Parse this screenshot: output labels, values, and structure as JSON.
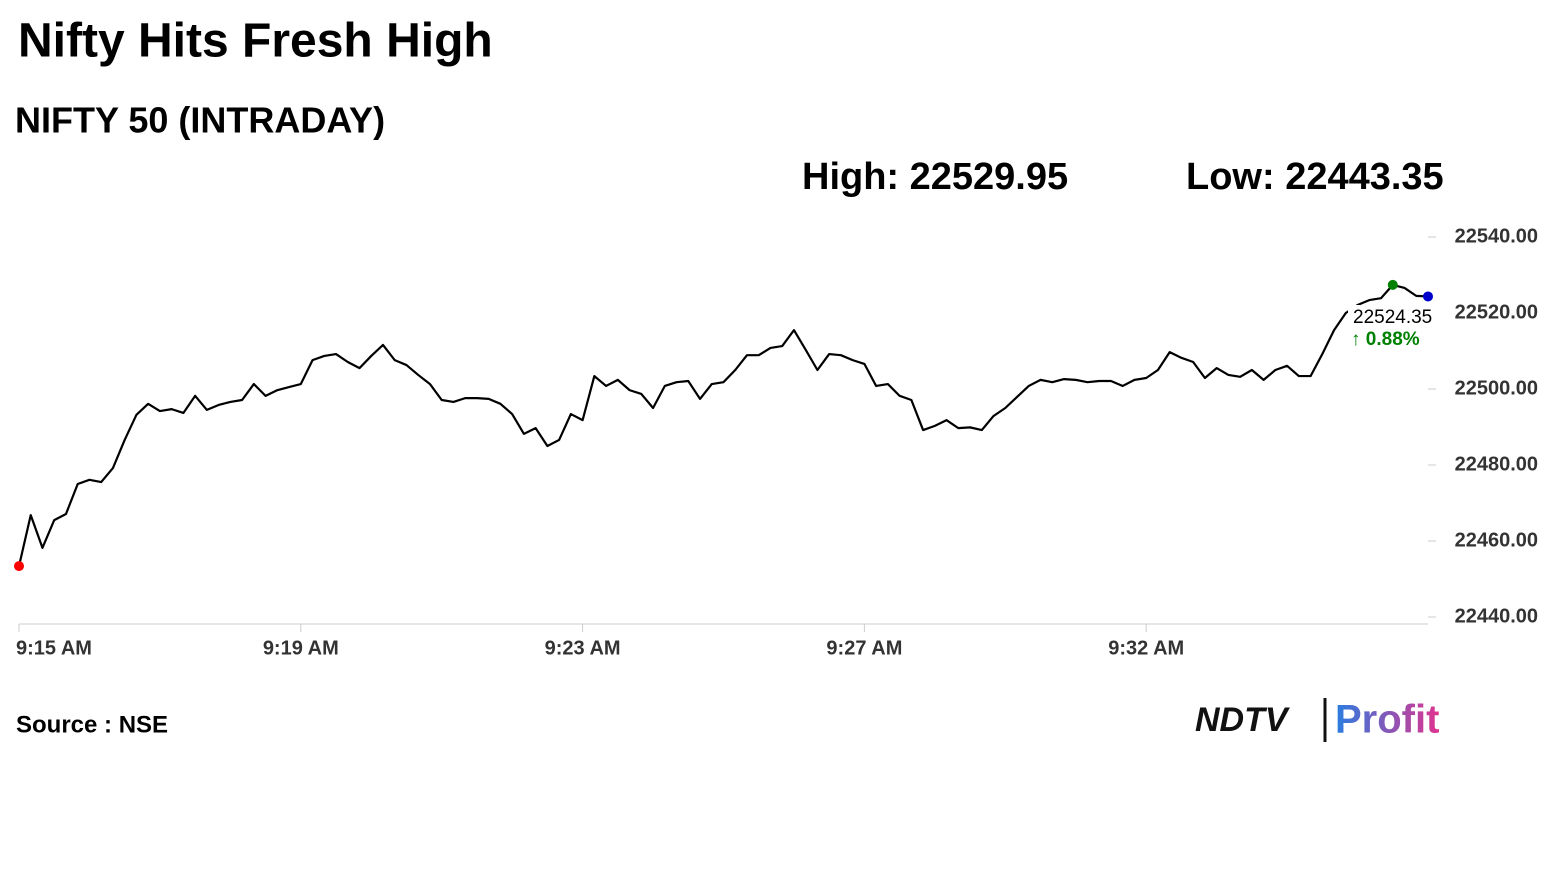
{
  "chart_data": {
    "type": "line",
    "title": "Nifty Hits Fresh High",
    "subtitle": "NIFTY 50 (INTRADAY)",
    "annotations": {
      "high": "High: 22529.95",
      "low": "Low: 22443.35",
      "last": "22524.35",
      "change": "↑ 0.88%"
    },
    "source": "Source : NSE",
    "logo": {
      "left": "NDTV",
      "right": "Profit"
    },
    "categories": [
      "9:15 AM",
      null,
      null,
      null,
      null,
      null,
      null,
      null,
      null,
      null,
      null,
      null,
      null,
      null,
      null,
      null,
      null,
      null,
      null,
      null,
      null,
      null,
      null,
      null,
      "9:19 AM",
      null,
      null,
      null,
      null,
      null,
      null,
      null,
      null,
      null,
      null,
      null,
      null,
      null,
      null,
      null,
      null,
      null,
      null,
      null,
      null,
      null,
      null,
      null,
      "9:23 AM",
      null,
      null,
      null,
      null,
      null,
      null,
      null,
      null,
      null,
      null,
      null,
      null,
      null,
      null,
      null,
      null,
      null,
      null,
      null,
      null,
      null,
      null,
      null,
      "9:27 AM",
      null,
      null,
      null,
      null,
      null,
      null,
      null,
      null,
      null,
      null,
      null,
      null,
      null,
      null,
      null,
      null,
      null,
      null,
      null,
      null,
      null,
      null,
      null,
      "9:32 AM",
      null,
      null,
      null,
      null,
      null,
      null,
      null,
      null,
      null,
      null,
      null,
      null,
      null,
      null,
      null,
      null,
      null,
      null,
      null,
      null,
      null,
      null,
      null,
      null
    ],
    "series": [
      {
        "name": "NIFTY 50",
        "color": "#000000",
        "values": [
          22453.4,
          22466.8,
          22458.2,
          22465.5,
          22467.1,
          22475.0,
          22476.1,
          22475.5,
          22479.2,
          22486.6,
          22493.2,
          22496.1,
          22494.2,
          22494.7,
          22493.7,
          22498.2,
          22494.5,
          22495.8,
          22496.6,
          22497.1,
          22501.3,
          22498.2,
          22499.7,
          22500.5,
          22501.3,
          22507.6,
          22508.7,
          22509.2,
          22507.1,
          22505.5,
          22508.7,
          22511.6,
          22507.6,
          22506.3,
          22503.7,
          22501.3,
          22497.1,
          22496.6,
          22497.6,
          22497.6,
          22497.4,
          22496.1,
          22493.4,
          22488.2,
          22489.7,
          22485.0,
          22486.6,
          22493.4,
          22491.8,
          22503.4,
          22500.8,
          22502.4,
          22499.7,
          22498.7,
          22495.0,
          22500.8,
          22501.8,
          22502.1,
          22497.4,
          22501.3,
          22501.8,
          22505.0,
          22508.9,
          22508.9,
          22510.8,
          22511.3,
          22515.5,
          22510.3,
          22505.0,
          22509.2,
          22508.9,
          22507.6,
          22506.6,
          22500.8,
          22501.3,
          22498.2,
          22497.1,
          22489.2,
          22490.3,
          22491.8,
          22489.7,
          22489.9,
          22489.2,
          22492.9,
          22495.0,
          22497.9,
          22500.8,
          22502.4,
          22501.8,
          22502.6,
          22502.4,
          22501.8,
          22502.1,
          22502.1,
          22500.8,
          22502.4,
          22502.9,
          22505.0,
          22509.7,
          22508.2,
          22507.1,
          22502.9,
          22505.5,
          22503.7,
          22503.2,
          22505.0,
          22502.4,
          22505.0,
          22506.1,
          22503.4,
          22503.4,
          22509.2,
          22515.5,
          22520.0,
          22522.1,
          22523.4,
          22523.9,
          22527.4,
          22526.6,
          22524.5,
          22524.35
        ]
      }
    ],
    "point_colors": {
      "first": "#ff0000",
      "max": "#008000",
      "last": "#0000cc"
    },
    "change_color": "#008000",
    "ylim": [
      22440,
      22540
    ],
    "yticks": [
      {
        "value": 22440,
        "label": "22440.00"
      },
      {
        "value": 22460,
        "label": "22460.00"
      },
      {
        "value": 22480,
        "label": "22480.00"
      },
      {
        "value": 22500,
        "label": "22500.00"
      },
      {
        "value": 22520,
        "label": "22520.00"
      },
      {
        "value": 22540,
        "label": "22540.00"
      }
    ],
    "grid": false
  }
}
